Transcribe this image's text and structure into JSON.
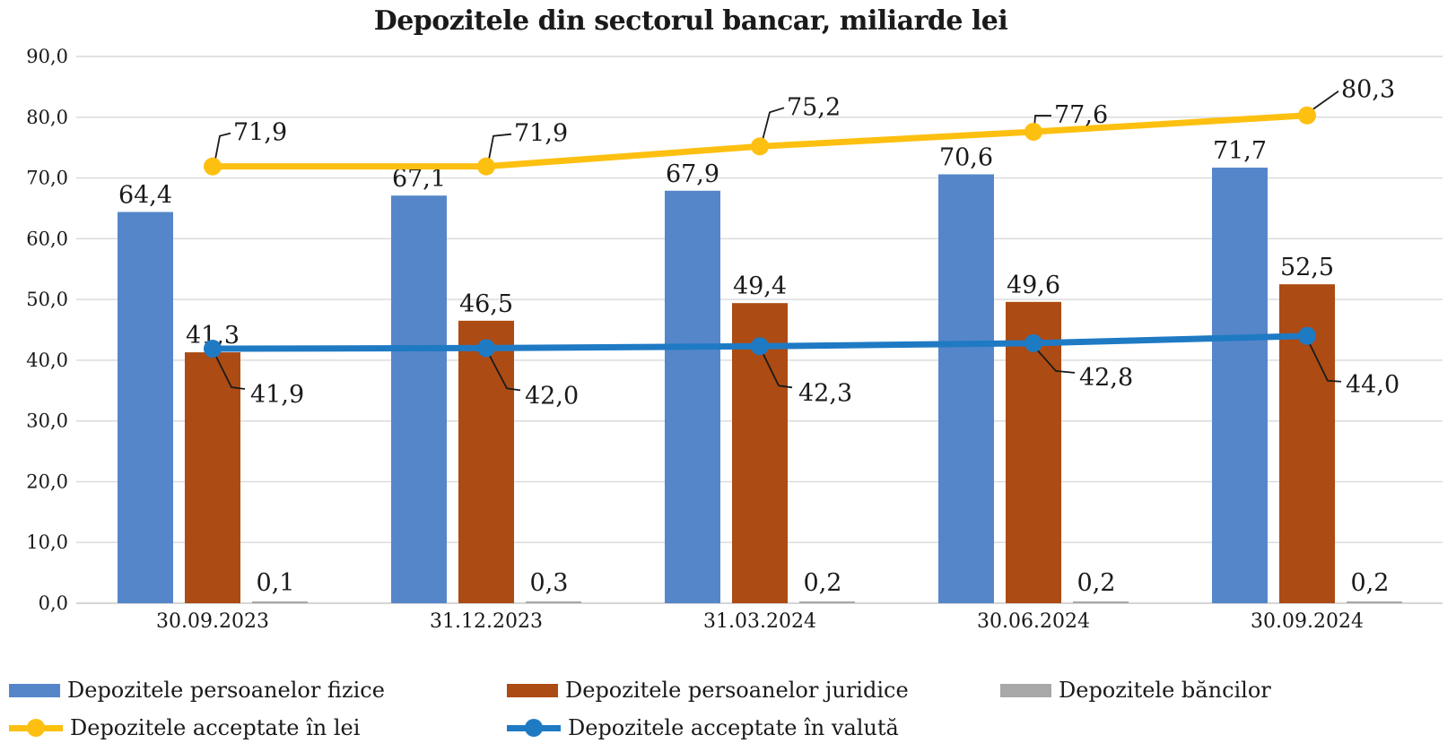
{
  "title": "Depozitele din sectorul bancar, miliarde lei",
  "chart_data": {
    "type": "combo (grouped bars + lines)",
    "title": "Depozitele din sectorul bancar, miliarde lei",
    "categories": [
      "30.09.2023",
      "31.12.2023",
      "31.03.2024",
      "30.06.2024",
      "30.09.2024"
    ],
    "series": [
      {
        "id": "persoane-fizice",
        "name": "Depozitele persoanelor fizice",
        "type": "bar",
        "color": "#5586C9",
        "values": [
          64.4,
          67.1,
          67.9,
          70.6,
          71.7
        ],
        "display_values": [
          "64,4",
          "67,1",
          "67,9",
          "70,6",
          "71,7"
        ]
      },
      {
        "id": "persoane-juridice",
        "name": "Depozitele persoanelor juridice",
        "type": "bar",
        "color": "#AC4B13",
        "values": [
          41.3,
          46.5,
          49.4,
          49.6,
          52.5
        ],
        "display_values": [
          "41,3",
          "46,5",
          "49,4",
          "49,6",
          "52,5"
        ]
      },
      {
        "id": "banci",
        "name": "Depozitele băncilor",
        "type": "bar",
        "color": "#A8A8A8",
        "values": [
          0.1,
          0.3,
          0.2,
          0.2,
          0.2
        ],
        "display_values": [
          "0,1",
          "0,3",
          "0,2",
          "0,2",
          "0,2"
        ]
      },
      {
        "id": "acceptate-lei",
        "name": "Depozitele acceptate în lei",
        "type": "line",
        "color": "#FDC010",
        "values": [
          71.9,
          71.9,
          75.2,
          77.6,
          80.3
        ],
        "display_values": [
          "71,9",
          "71,9",
          "75,2",
          "77,6",
          "80,3"
        ]
      },
      {
        "id": "acceptate-valuta",
        "name": "Depozitele acceptate în valută",
        "type": "line",
        "color": "#1F7AC4",
        "values": [
          41.9,
          42.0,
          42.3,
          42.8,
          44.0
        ],
        "display_values": [
          "41,9",
          "42,0",
          "42,3",
          "42,8",
          "44,0"
        ]
      }
    ],
    "y_axis": {
      "min": 0,
      "max": 90,
      "step": 10,
      "tick_labels": [
        "0,0",
        "10,0",
        "20,0",
        "30,0",
        "40,0",
        "50,0",
        "60,0",
        "70,0",
        "80,0",
        "90,0"
      ]
    },
    "grid": true,
    "legend_position": "bottom",
    "colors": {
      "gridline": "#D9D9D9",
      "zero_line": "#C9C9C9",
      "text": "#1A1A1A",
      "leader_line": "#1A1A1A",
      "background": "#FFFFFF"
    }
  }
}
